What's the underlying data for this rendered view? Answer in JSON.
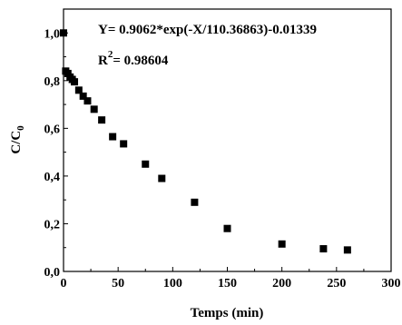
{
  "chart_data": {
    "type": "scatter",
    "title": "",
    "xlabel": "Temps (min)",
    "ylabel": "C/C",
    "ylabel_subscript": "0",
    "xlim": [
      0,
      300
    ],
    "ylim": [
      0,
      1.1
    ],
    "x_ticks": [
      0,
      50,
      100,
      150,
      200,
      250,
      300
    ],
    "x_tick_labels": [
      "0",
      "50",
      "100",
      "150",
      "200",
      "250",
      "300"
    ],
    "y_ticks": [
      0.0,
      0.2,
      0.4,
      0.6,
      0.8,
      1.0
    ],
    "y_tick_labels": [
      "0,0",
      "0,2",
      "0,4",
      "0,6",
      "0,8",
      "1,0"
    ],
    "grid": false,
    "marker": "square",
    "marker_color": "#000000",
    "series": [
      {
        "x": [
          0,
          2,
          4,
          6,
          8,
          10,
          14,
          18,
          22,
          28,
          35,
          45,
          55,
          75,
          90,
          120,
          150,
          200,
          238,
          260
        ],
        "y": [
          1.0,
          0.84,
          0.83,
          0.815,
          0.805,
          0.795,
          0.76,
          0.735,
          0.715,
          0.68,
          0.635,
          0.565,
          0.535,
          0.45,
          0.39,
          0.29,
          0.18,
          0.115,
          0.095,
          0.09
        ]
      }
    ],
    "annotations": {
      "equation": "Y= 0.9062*exp(-X/110.36863)-0.01339",
      "r2_prefix": "R",
      "r2_sup": "2",
      "r2_value": "= 0.98604"
    }
  }
}
